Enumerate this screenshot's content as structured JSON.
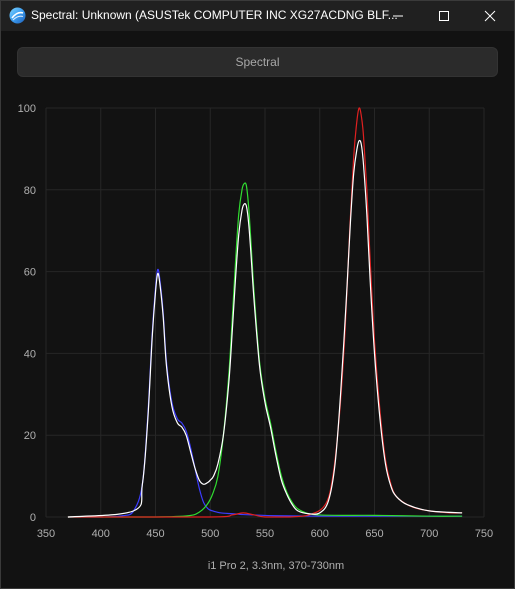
{
  "window": {
    "title": "Spectral: Unknown (ASUSTek COMPUTER INC XG27ACDNG BLF...",
    "controls": [
      "minimize-icon",
      "maximize-icon",
      "close-icon"
    ]
  },
  "toolbar": {
    "mode_label": "Spectral"
  },
  "chart_data": {
    "type": "line",
    "xlabel": "i1 Pro 2, 3.3nm, 370-730nm",
    "ylabel": "",
    "xlim": [
      350,
      750
    ],
    "ylim": [
      0,
      100
    ],
    "xticks": [
      "350",
      "400",
      "450",
      "500",
      "550",
      "600",
      "650",
      "700",
      "750"
    ],
    "yticks": [
      "0",
      "20",
      "40",
      "60",
      "80",
      "100"
    ],
    "grid": true,
    "series": [
      {
        "color": "#3c3cff",
        "x": [
          370,
          400,
          420,
          430,
          438,
          443,
          447,
          450,
          452,
          454,
          457,
          460,
          465,
          470,
          474,
          478,
          482,
          486,
          490,
          494,
          498,
          502,
          506,
          510,
          520,
          530,
          540,
          560,
          600,
          650,
          700,
          730
        ],
        "y": [
          0,
          0,
          0.3,
          1.5,
          8,
          25,
          45,
          56,
          60.5,
          58,
          50,
          38,
          28,
          24,
          23,
          21,
          17,
          12,
          7,
          3.5,
          2,
          1.5,
          1.2,
          1,
          0.8,
          0.6,
          0.5,
          0.3,
          0.2,
          0.2,
          0.2,
          0.2
        ]
      },
      {
        "color": "#30dc30",
        "x": [
          370,
          450,
          480,
          490,
          497,
          502,
          507,
          512,
          517,
          520,
          523,
          526,
          529,
          531,
          533,
          535,
          537,
          540,
          545,
          550,
          555,
          560,
          565,
          570,
          575,
          580,
          590,
          600,
          620,
          650,
          700,
          730
        ],
        "y": [
          0,
          0,
          0.3,
          1.2,
          3,
          5.5,
          10,
          20,
          35,
          48,
          62,
          74,
          80,
          81.5,
          81,
          76,
          68,
          55,
          38,
          29,
          23,
          16,
          10,
          6,
          3.5,
          2,
          0.8,
          0.5,
          0.4,
          0.4,
          0.2,
          0.2
        ]
      },
      {
        "color": "#e02020",
        "x": [
          370,
          500,
          520,
          530,
          540,
          550,
          570,
          590,
          605,
          612,
          618,
          623,
          627,
          631,
          634,
          636,
          638,
          640,
          643,
          646,
          650,
          655,
          660,
          665,
          670,
          680,
          690,
          700,
          710,
          720,
          730
        ],
        "y": [
          0,
          0,
          0.5,
          1,
          0.5,
          0,
          0,
          0.5,
          3,
          10,
          25,
          45,
          68,
          88,
          97,
          100,
          98,
          93,
          80,
          63,
          43,
          26,
          14,
          8,
          5,
          3,
          2,
          1.5,
          1.2,
          1,
          1
        ]
      },
      {
        "color": "#ffffff",
        "x": [
          370,
          430,
          438,
          443,
          447,
          450,
          452,
          454,
          457,
          460,
          465,
          470,
          474,
          478,
          482,
          486,
          490,
          494,
          498,
          500,
          503,
          507,
          512,
          517,
          520,
          523,
          526,
          529,
          531,
          533,
          535,
          537,
          540,
          545,
          550,
          555,
          560,
          565,
          570,
          575,
          580,
          590,
          600,
          608,
          614,
          619,
          624,
          628,
          631,
          634,
          636,
          638,
          640,
          643,
          646,
          650,
          655,
          660,
          665,
          670,
          680,
          700,
          730
        ],
        "y": [
          0,
          1.5,
          8,
          24,
          44,
          55,
          59.5,
          57,
          49,
          37,
          27,
          23,
          22,
          20,
          16,
          12,
          9,
          8,
          8.5,
          9,
          10,
          13,
          20,
          33,
          45,
          58,
          69,
          75,
          76.5,
          76,
          72,
          65,
          53,
          37,
          28,
          22,
          15,
          9,
          5.5,
          3,
          1.5,
          0.8,
          1,
          4,
          13,
          30,
          52,
          72,
          84,
          90,
          92,
          91,
          86,
          74,
          58,
          40,
          24,
          13,
          7.5,
          5,
          3,
          1.5,
          1
        ]
      }
    ]
  }
}
